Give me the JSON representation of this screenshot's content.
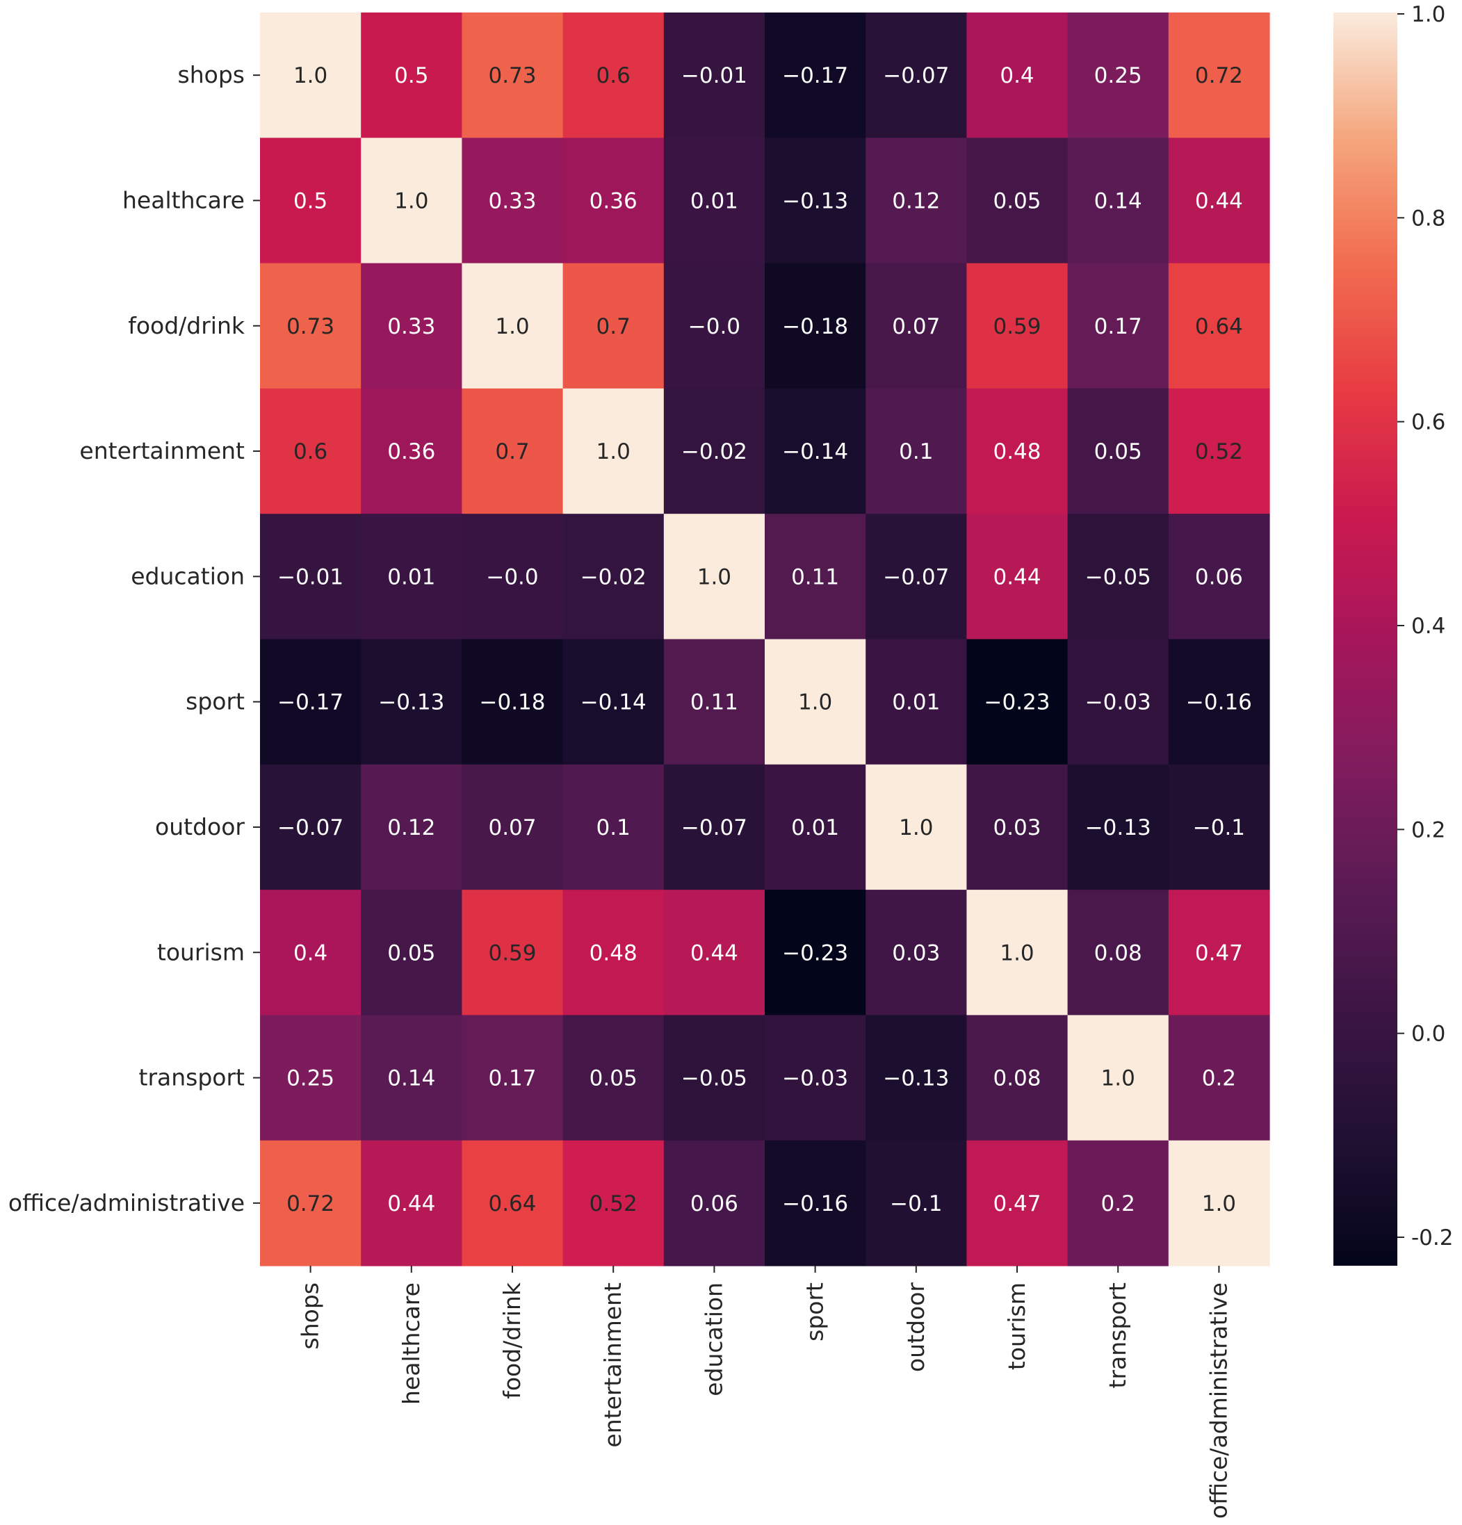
{
  "chart_data": {
    "type": "heatmap",
    "title": "",
    "xlabel": "",
    "ylabel": "",
    "labels": [
      "shops",
      "healthcare",
      "food/drink",
      "entertainment",
      "education",
      "sport",
      "outdoor",
      "tourism",
      "transport",
      "office/administrative"
    ],
    "values": [
      [
        1.0,
        0.5,
        0.73,
        0.6,
        -0.01,
        -0.17,
        -0.07,
        0.4,
        0.25,
        0.72
      ],
      [
        0.5,
        1.0,
        0.33,
        0.36,
        0.01,
        -0.13,
        0.12,
        0.05,
        0.14,
        0.44
      ],
      [
        0.73,
        0.33,
        1.0,
        0.7,
        -0.0,
        -0.18,
        0.07,
        0.59,
        0.17,
        0.64
      ],
      [
        0.6,
        0.36,
        0.7,
        1.0,
        -0.02,
        -0.14,
        0.1,
        0.48,
        0.05,
        0.52
      ],
      [
        -0.01,
        0.01,
        -0.0,
        -0.02,
        1.0,
        0.11,
        -0.07,
        0.44,
        -0.05,
        0.06
      ],
      [
        -0.17,
        -0.13,
        -0.18,
        -0.14,
        0.11,
        1.0,
        0.01,
        -0.23,
        -0.03,
        -0.16
      ],
      [
        -0.07,
        0.12,
        0.07,
        0.1,
        -0.07,
        0.01,
        1.0,
        0.03,
        -0.13,
        -0.1
      ],
      [
        0.4,
        0.05,
        0.59,
        0.48,
        0.44,
        -0.23,
        0.03,
        1.0,
        0.08,
        0.47
      ],
      [
        0.25,
        0.14,
        0.17,
        0.05,
        -0.05,
        -0.03,
        -0.13,
        0.08,
        1.0,
        0.2
      ],
      [
        0.72,
        0.44,
        0.64,
        0.52,
        0.06,
        -0.16,
        -0.1,
        0.47,
        0.2,
        1.0
      ]
    ],
    "cell_text": [
      [
        "1.0",
        "0.5",
        "0.73",
        "0.6",
        "−0.01",
        "−0.17",
        "−0.07",
        "0.4",
        "0.25",
        "0.72"
      ],
      [
        "0.5",
        "1.0",
        "0.33",
        "0.36",
        "0.01",
        "−0.13",
        "0.12",
        "0.05",
        "0.14",
        "0.44"
      ],
      [
        "0.73",
        "0.33",
        "1.0",
        "0.7",
        "−0.0",
        "−0.18",
        "0.07",
        "0.59",
        "0.17",
        "0.64"
      ],
      [
        "0.6",
        "0.36",
        "0.7",
        "1.0",
        "−0.02",
        "−0.14",
        "0.1",
        "0.48",
        "0.05",
        "0.52"
      ],
      [
        "−0.01",
        "0.01",
        "−0.0",
        "−0.02",
        "1.0",
        "0.11",
        "−0.07",
        "0.44",
        "−0.05",
        "0.06"
      ],
      [
        "−0.17",
        "−0.13",
        "−0.18",
        "−0.14",
        "0.11",
        "1.0",
        "0.01",
        "−0.23",
        "−0.03",
        "−0.16"
      ],
      [
        "−0.07",
        "0.12",
        "0.07",
        "0.1",
        "−0.07",
        "0.01",
        "1.0",
        "0.03",
        "−0.13",
        "−0.1"
      ],
      [
        "0.4",
        "0.05",
        "0.59",
        "0.48",
        "0.44",
        "−0.23",
        "0.03",
        "1.0",
        "0.08",
        "0.47"
      ],
      [
        "0.25",
        "0.14",
        "0.17",
        "0.05",
        "−0.05",
        "−0.03",
        "−0.13",
        "0.08",
        "1.0",
        "0.2"
      ],
      [
        "0.72",
        "0.44",
        "0.64",
        "0.52",
        "0.06",
        "−0.16",
        "−0.1",
        "0.47",
        "0.2",
        "1.0"
      ]
    ],
    "vmin": -0.23,
    "vmax": 1.0,
    "colormap": "rocket",
    "colorbar": {
      "ticks": [
        1.0,
        0.8,
        0.6,
        0.4,
        0.2,
        0.0,
        -0.2
      ],
      "tick_labels": [
        "1.0",
        "0.8",
        "0.6",
        "0.4",
        "0.2",
        "0.0",
        "-0.2"
      ]
    }
  }
}
